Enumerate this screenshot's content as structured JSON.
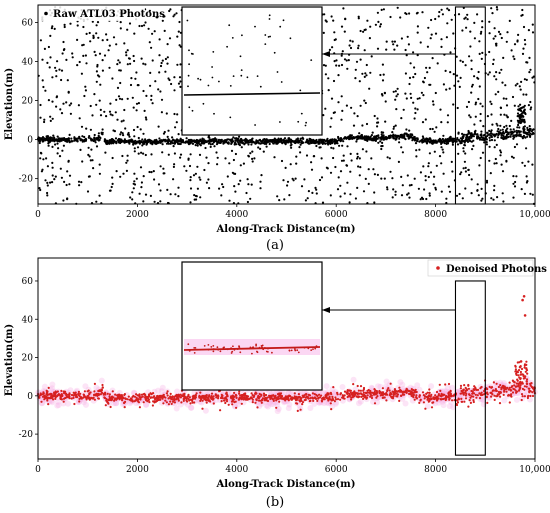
{
  "chart_data": [
    {
      "id": "a",
      "type": "scatter",
      "panel_label": "(a)",
      "legend": "Raw ATL03 Photons",
      "legend_position": "top-left",
      "xlabel": "Along-Track Distance(m)",
      "ylabel": "Elevation(m)",
      "xlim": [
        0,
        10000
      ],
      "ylim": [
        -33,
        69
      ],
      "xticks": [
        0,
        2000,
        4000,
        6000,
        8000,
        10000
      ],
      "xtick_labels": [
        "0",
        "2000",
        "4000",
        "6000",
        "8000",
        "10,000"
      ],
      "yticks": [
        -20,
        0,
        20,
        40,
        60
      ],
      "color": "#000000",
      "zoom_box_x": [
        8400,
        9000
      ],
      "zoom_box_y": [
        -33,
        68
      ],
      "ground_profile": {
        "x": [
          0,
          1000,
          1250,
          1300,
          1350,
          2000,
          3000,
          4000,
          5000,
          6000,
          6200,
          7000,
          7500,
          7600,
          8000,
          8400,
          8600,
          9000,
          9500,
          10000
        ],
        "y": [
          0,
          0,
          1,
          4,
          -1,
          -1,
          -1,
          -1,
          -1,
          -1,
          1,
          1,
          2,
          0,
          -1,
          0,
          1,
          2,
          3,
          4
        ]
      },
      "noise_density_per_1000m": 150
    },
    {
      "id": "b",
      "type": "scatter",
      "panel_label": "(b)",
      "legend": "Denoised Photons",
      "legend_position": "top-right",
      "xlabel": "Along-Track Distance(m)",
      "ylabel": "Elevation(m)",
      "xlim": [
        0,
        10000
      ],
      "ylim": [
        -33,
        72
      ],
      "xticks": [
        0,
        2000,
        4000,
        6000,
        8000,
        10000
      ],
      "xtick_labels": [
        "0",
        "2000",
        "4000",
        "6000",
        "8000",
        "10,000"
      ],
      "yticks": [
        -20,
        0,
        20,
        40,
        60
      ],
      "color": "#d62020",
      "halo_color": "#f7b3e6",
      "zoom_box_x": [
        8400,
        9000
      ],
      "zoom_box_y": [
        -31,
        60
      ],
      "ground_profile": {
        "x": [
          0,
          1000,
          1250,
          1300,
          1350,
          2000,
          3000,
          4000,
          5000,
          6000,
          6200,
          7000,
          7500,
          7600,
          8000,
          8400,
          8600,
          9000,
          9500,
          10000
        ],
        "y": [
          0,
          0,
          1,
          4,
          -1,
          -1,
          -1,
          -1,
          -1,
          -1,
          1,
          1,
          2,
          0,
          -1,
          0,
          1,
          2,
          3,
          4
        ]
      },
      "outliers": [
        {
          "x": 9750,
          "y": 50
        },
        {
          "x": 9780,
          "y": 52
        },
        {
          "x": 9800,
          "y": 42
        },
        {
          "x": 9720,
          "y": 18
        },
        {
          "x": 9700,
          "y": 15
        }
      ]
    }
  ]
}
